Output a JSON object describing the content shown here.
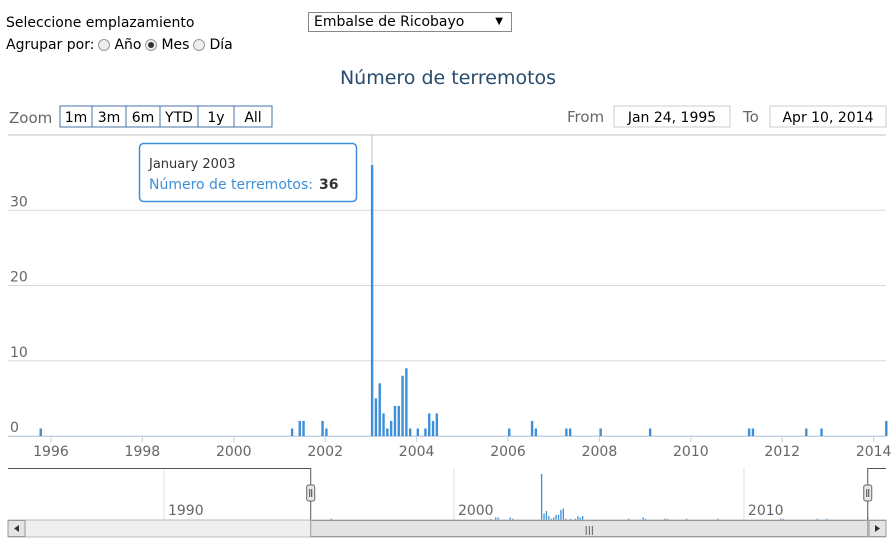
{
  "controls": {
    "site_label": "Seleccione emplazamiento",
    "site_value": "Embalse de Ricobayo",
    "group_label": "Agrupar por:",
    "group_options": [
      "Año",
      "Mes",
      "Día"
    ],
    "group_selected": 1
  },
  "range_selector": {
    "zoom_label": "Zoom",
    "buttons": [
      "1m",
      "3m",
      "6m",
      "YTD",
      "1y",
      "All"
    ],
    "from_label": "From",
    "from": "Jan 24, 1995",
    "to_label": "To",
    "to": "Apr 10, 2014"
  },
  "chart_data": {
    "type": "bar",
    "title": "Número de terremotos",
    "color": "#3d8fd9",
    "x": [
      "1995-10",
      "2001-04",
      "2001-06",
      "2001-07",
      "2001-12",
      "2002-01",
      "2003-01",
      "2003-02",
      "2003-03",
      "2003-04",
      "2003-05",
      "2003-06",
      "2003-07",
      "2003-08",
      "2003-09",
      "2003-10",
      "2003-11",
      "2004-01",
      "2004-03",
      "2004-04",
      "2004-05",
      "2004-06",
      "2006-01",
      "2006-07",
      "2006-08",
      "2007-04",
      "2007-05",
      "2008-01",
      "2009-02",
      "2011-04",
      "2011-05",
      "2012-07",
      "2012-11",
      "2014-04"
    ],
    "values": [
      1,
      1,
      2,
      2,
      2,
      1,
      36,
      5,
      7,
      3,
      1,
      2,
      4,
      4,
      8,
      9,
      1,
      1,
      1,
      3,
      2,
      3,
      1,
      2,
      1,
      1,
      1,
      1,
      1,
      1,
      1,
      1,
      1,
      2
    ],
    "xlim": [
      1995.06,
      2014.27
    ],
    "xticks": [
      1996,
      1998,
      2000,
      2002,
      2004,
      2006,
      2008,
      2010,
      2012,
      2014
    ],
    "ylim": [
      0,
      40
    ],
    "yticks": [
      0,
      10,
      20,
      30
    ],
    "grid": true,
    "tooltip": {
      "index": 6,
      "header": "January 2003",
      "label": "Número de terremotos:"
    },
    "navigator": {
      "xlim": [
        1984.62,
        2014.9
      ],
      "xticks": [
        1990,
        2000,
        2010
      ],
      "ylim": [
        0,
        36
      ]
    }
  }
}
